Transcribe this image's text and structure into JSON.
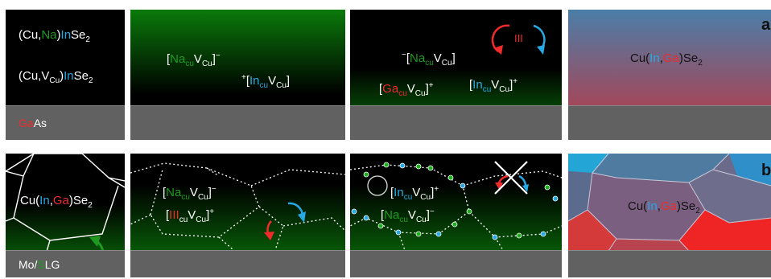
{
  "row_a": {
    "letter": "a",
    "p1": {
      "line1": [
        "(Cu,",
        "Na",
        ")",
        "In",
        "Se",
        "2"
      ],
      "line2": [
        "(Cu,V",
        "Cu",
        ")",
        "In",
        "Se",
        "2"
      ],
      "substrate": [
        "Ga",
        "As"
      ]
    },
    "p2": {
      "d1": [
        "[",
        "Na",
        "cu",
        "V",
        "Cu",
        "]",
        "−"
      ],
      "d2": [
        "+",
        "[",
        "In",
        "cu",
        "V",
        "Cu",
        "]"
      ]
    },
    "p3": {
      "roman": "III",
      "d1": [
        "−",
        "[",
        "Na",
        "cu",
        "V",
        "Cu",
        "]"
      ],
      "d2": [
        "[",
        "Ga",
        "cu",
        "V",
        "Cu",
        "]",
        "+"
      ],
      "d3": [
        "[",
        "In",
        "cu",
        "V",
        "Cu",
        "]",
        "+"
      ]
    },
    "p4": {
      "formula": [
        "Cu(",
        "In",
        ",",
        "Ga",
        ")Se",
        "2"
      ]
    }
  },
  "row_b": {
    "letter": "b",
    "p1": {
      "formula": [
        "Cu(",
        "In",
        ",",
        "Ga",
        ")Se",
        "2"
      ],
      "substrate": [
        "Mo/",
        "S",
        "LG"
      ]
    },
    "p2": {
      "d1": [
        "[",
        "Na",
        "cu",
        "V",
        "Cu",
        "]",
        "−"
      ],
      "d2": [
        "[",
        "III",
        "cu",
        "V",
        "Cu",
        "]",
        "+"
      ]
    },
    "p3": {
      "d1": [
        "[",
        "In",
        "cu",
        "V",
        "Cu",
        "]",
        "+"
      ],
      "d2": [
        "[",
        "Na",
        "cu",
        "V",
        "Cu",
        "]",
        "−"
      ]
    },
    "p4": {
      "formula": [
        "Cu(",
        "In",
        ",",
        "Ga",
        ")Se",
        "2"
      ]
    }
  },
  "colors": {
    "green": "#1f9a1f",
    "blue": "#27a9e6",
    "red": "#ef2b2b",
    "substrate": "#616161"
  }
}
